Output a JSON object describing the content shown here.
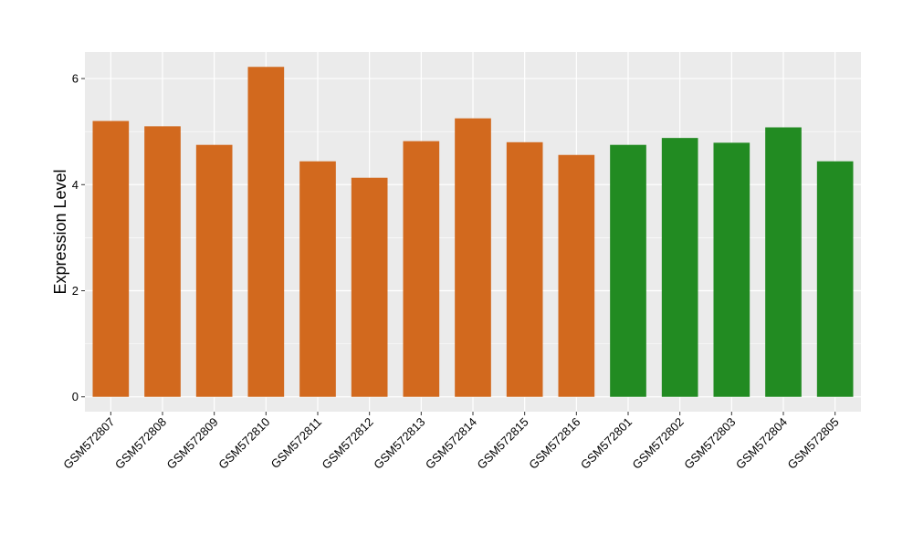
{
  "chart_data": {
    "type": "bar",
    "title": "",
    "xlabel": "",
    "ylabel": "Expression Level",
    "ylim": [
      -0.28,
      6.5
    ],
    "yticks": [
      0,
      2,
      4,
      6
    ],
    "grid": true,
    "panel_background": "#EBEBEB",
    "categories": [
      "GSM572807",
      "GSM572808",
      "GSM572809",
      "GSM572810",
      "GSM572811",
      "GSM572812",
      "GSM572813",
      "GSM572814",
      "GSM572815",
      "GSM572816",
      "GSM572801",
      "GSM572802",
      "GSM572803",
      "GSM572804",
      "GSM572805"
    ],
    "values": [
      5.2,
      5.1,
      4.75,
      6.22,
      4.44,
      4.13,
      4.82,
      5.25,
      4.8,
      4.56,
      4.75,
      4.88,
      4.79,
      5.08,
      4.44
    ],
    "bar_colors": [
      "#D2691E",
      "#D2691E",
      "#D2691E",
      "#D2691E",
      "#D2691E",
      "#D2691E",
      "#D2691E",
      "#D2691E",
      "#D2691E",
      "#D2691E",
      "#228B22",
      "#228B22",
      "#228B22",
      "#228B22",
      "#228B22"
    ]
  }
}
